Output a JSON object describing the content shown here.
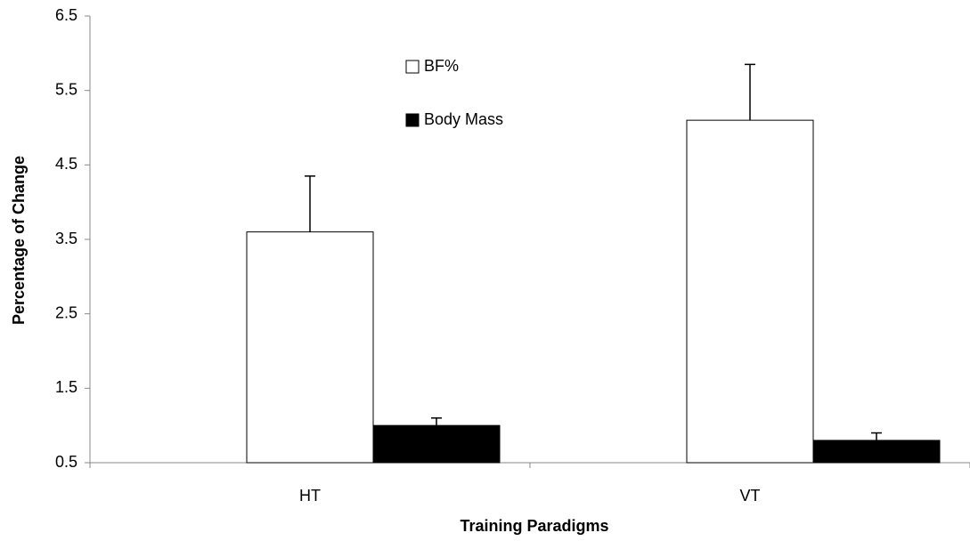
{
  "chart_data": {
    "type": "bar",
    "xlabel": "Training Paradigms",
    "ylabel": "Percentage of Change",
    "categories": [
      "HT",
      "VT"
    ],
    "series": [
      {
        "name": "BF%",
        "color": "#ffffff",
        "values": [
          3.6,
          5.1
        ],
        "errors": [
          0.75,
          0.75
        ]
      },
      {
        "name": "Body Mass",
        "color": "#000000",
        "values": [
          1.0,
          0.8
        ],
        "errors": [
          0.1,
          0.1
        ]
      }
    ],
    "ylim": [
      0.5,
      6.5
    ],
    "yticks": [
      0.5,
      1.5,
      2.5,
      3.5,
      4.5,
      5.5,
      6.5
    ],
    "grid": false,
    "legend": "top"
  }
}
